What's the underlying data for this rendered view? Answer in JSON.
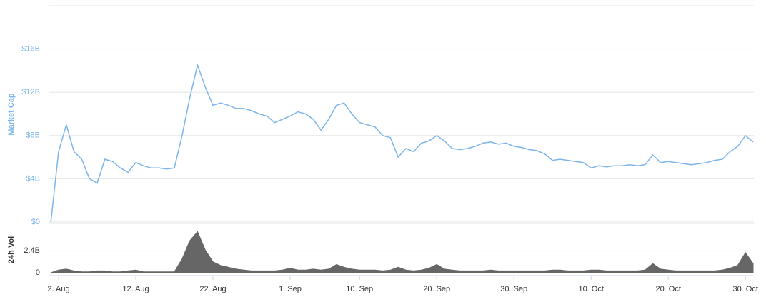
{
  "chart_data": [
    {
      "type": "line",
      "ylabel": "Market Cap",
      "color": "#7cb5ec",
      "categories": [
        null,
        "2. Aug",
        null,
        null,
        null,
        null,
        null,
        null,
        null,
        null,
        null,
        "12. Aug",
        null,
        null,
        null,
        null,
        null,
        null,
        null,
        null,
        null,
        "22. Aug",
        null,
        null,
        null,
        null,
        null,
        null,
        null,
        null,
        null,
        "1. Sep",
        null,
        null,
        null,
        null,
        null,
        null,
        null,
        null,
        "10. Sep",
        null,
        null,
        null,
        null,
        null,
        null,
        null,
        null,
        null,
        "20. Sep",
        null,
        null,
        null,
        null,
        null,
        null,
        null,
        null,
        null,
        "30. Sep",
        null,
        null,
        null,
        null,
        null,
        null,
        null,
        null,
        null,
        "10. Oct",
        null,
        null,
        null,
        null,
        null,
        null,
        null,
        null,
        null,
        "20. Oct",
        null,
        null,
        null,
        null,
        null,
        null,
        null,
        null,
        null,
        "30. Oct",
        null
      ],
      "values": [
        0,
        6.5,
        9,
        6.5,
        5.8,
        4.0,
        3.6,
        5.8,
        5.6,
        5.0,
        4.6,
        5.5,
        5.2,
        5.0,
        5.0,
        4.9,
        5.0,
        8.0,
        11.5,
        14.5,
        12.5,
        10.8,
        11.0,
        10.8,
        10.5,
        10.5,
        10.3,
        10.0,
        9.8,
        9.2,
        9.5,
        9.8,
        10.2,
        10.0,
        9.5,
        8.5,
        9.5,
        10.8,
        11.0,
        10.0,
        9.2,
        9.0,
        8.8,
        8.0,
        7.8,
        6.0,
        6.8,
        6.5,
        7.3,
        7.5,
        8.0,
        7.5,
        6.8,
        6.7,
        6.8,
        7.0,
        7.3,
        7.4,
        7.2,
        7.3,
        7.0,
        6.9,
        6.7,
        6.6,
        6.3,
        5.7,
        5.8,
        5.7,
        5.6,
        5.5,
        5.0,
        5.2,
        5.1,
        5.2,
        5.2,
        5.3,
        5.2,
        5.3,
        6.2,
        5.5,
        5.6,
        5.5,
        5.4,
        5.3,
        5.4,
        5.5,
        5.7,
        5.8,
        6.5,
        7.0,
        8.0,
        7.4
      ],
      "ylim": [
        0,
        20
      ],
      "yticks": [
        {
          "value": 0,
          "label": "$0"
        },
        {
          "value": 4,
          "label": "$4B"
        },
        {
          "value": 8,
          "label": "$8B"
        },
        {
          "value": 12,
          "label": "$12B"
        },
        {
          "value": 16,
          "label": "$16B"
        }
      ],
      "grid": true
    },
    {
      "type": "area",
      "ylabel": "24h Vol",
      "color": "#666666",
      "categories": [
        null,
        "2. Aug",
        null,
        null,
        null,
        null,
        null,
        null,
        null,
        null,
        null,
        "12. Aug",
        null,
        null,
        null,
        null,
        null,
        null,
        null,
        null,
        null,
        "22. Aug",
        null,
        null,
        null,
        null,
        null,
        null,
        null,
        null,
        null,
        "1. Sep",
        null,
        null,
        null,
        null,
        null,
        null,
        null,
        null,
        "10. Sep",
        null,
        null,
        null,
        null,
        null,
        null,
        null,
        null,
        null,
        "20. Sep",
        null,
        null,
        null,
        null,
        null,
        null,
        null,
        null,
        null,
        "30. Sep",
        null,
        null,
        null,
        null,
        null,
        null,
        null,
        null,
        null,
        "10. Oct",
        null,
        null,
        null,
        null,
        null,
        null,
        null,
        null,
        null,
        "20. Oct",
        null,
        null,
        null,
        null,
        null,
        null,
        null,
        null,
        null,
        "30. Oct",
        null
      ],
      "values": [
        0,
        0.3,
        0.4,
        0.2,
        0.1,
        0.1,
        0.2,
        0.2,
        0.1,
        0.1,
        0.2,
        0.3,
        0.1,
        0.1,
        0.1,
        0.1,
        0.1,
        1.5,
        3.5,
        4.5,
        2.5,
        1.2,
        0.8,
        0.6,
        0.4,
        0.3,
        0.2,
        0.2,
        0.2,
        0.2,
        0.3,
        0.5,
        0.3,
        0.3,
        0.4,
        0.3,
        0.4,
        0.9,
        0.6,
        0.4,
        0.3,
        0.3,
        0.3,
        0.2,
        0.3,
        0.6,
        0.3,
        0.2,
        0.3,
        0.5,
        0.9,
        0.4,
        0.3,
        0.2,
        0.2,
        0.2,
        0.2,
        0.3,
        0.2,
        0.2,
        0.2,
        0.2,
        0.2,
        0.2,
        0.2,
        0.3,
        0.3,
        0.2,
        0.2,
        0.2,
        0.3,
        0.3,
        0.2,
        0.2,
        0.2,
        0.2,
        0.2,
        0.3,
        1.0,
        0.4,
        0.3,
        0.2,
        0.2,
        0.2,
        0.2,
        0.2,
        0.2,
        0.3,
        0.5,
        0.8,
        2.2,
        1.0
      ],
      "ylim": [
        0,
        5.4
      ],
      "yticks": [
        0,
        {
          "value": 2.4,
          "label": "2.4B"
        }
      ],
      "grid": true
    }
  ]
}
